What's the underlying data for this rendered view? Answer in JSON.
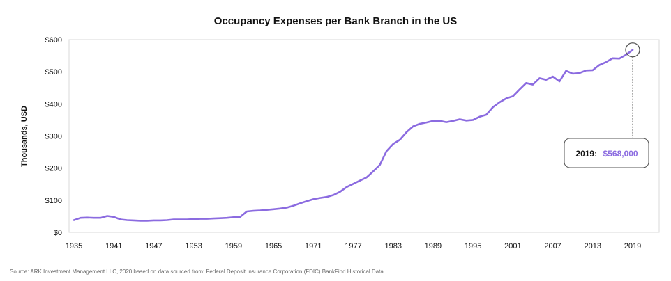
{
  "chart_data": {
    "type": "line",
    "title": "Occupancy Expenses per Bank Branch in the US",
    "ylabel": "Thousands, USD",
    "xlabel": "",
    "x_ticks": [
      1935,
      1941,
      1947,
      1953,
      1959,
      1965,
      1971,
      1977,
      1983,
      1989,
      1995,
      2001,
      2007,
      2013,
      2019
    ],
    "y_ticks": [
      0,
      100,
      200,
      300,
      400,
      500,
      600
    ],
    "y_tick_labels": [
      "$0",
      "$100",
      "$200",
      "$300",
      "$400",
      "$500",
      "$600"
    ],
    "xlim": [
      1935,
      2019
    ],
    "ylim": [
      0,
      600
    ],
    "grid": false,
    "line_color": "#8b6be0",
    "series": [
      {
        "x": [
          1935,
          1936,
          1937,
          1938,
          1939,
          1940,
          1941,
          1942,
          1943,
          1944,
          1945,
          1946,
          1947,
          1948,
          1949,
          1950,
          1951,
          1952,
          1953,
          1954,
          1955,
          1956,
          1957,
          1958,
          1959,
          1960,
          1961,
          1962,
          1963,
          1964,
          1965,
          1966,
          1967,
          1968,
          1969,
          1970,
          1971,
          1972,
          1973,
          1974,
          1975,
          1976,
          1977,
          1978,
          1979,
          1980,
          1981,
          1982,
          1983,
          1984,
          1985,
          1986,
          1987,
          1988,
          1989,
          1990,
          1991,
          1992,
          1993,
          1994,
          1995,
          1996,
          1997,
          1998,
          1999,
          2000,
          2001,
          2002,
          2003,
          2004,
          2005,
          2006,
          2007,
          2008,
          2009,
          2010,
          2011,
          2012,
          2013,
          2014,
          2015,
          2016,
          2017,
          2018,
          2019
        ],
        "values": [
          38,
          45,
          46,
          45,
          45,
          51,
          48,
          40,
          38,
          37,
          36,
          36,
          37,
          37,
          38,
          40,
          40,
          40,
          41,
          42,
          42,
          43,
          44,
          45,
          47,
          48,
          65,
          67,
          68,
          70,
          72,
          74,
          77,
          83,
          90,
          97,
          103,
          107,
          110,
          116,
          126,
          141,
          151,
          161,
          171,
          190,
          210,
          253,
          275,
          288,
          312,
          330,
          338,
          342,
          347,
          347,
          343,
          347,
          352,
          348,
          350,
          360,
          366,
          390,
          405,
          417,
          424,
          445,
          465,
          460,
          480,
          475,
          485,
          470,
          503,
          494,
          496,
          504,
          505,
          521,
          530,
          542,
          541,
          553,
          568
        ]
      }
    ],
    "annotation": {
      "year": "2019:",
      "value": "$568,000",
      "x": 2019,
      "y": 568,
      "accent_color": "#8b6be0"
    }
  },
  "source_note": "Source: ARK Investment Management LLC, 2020 based on data sourced from: Federal Deposit Insurance Corporation (FDIC) BankFind Historical Data."
}
